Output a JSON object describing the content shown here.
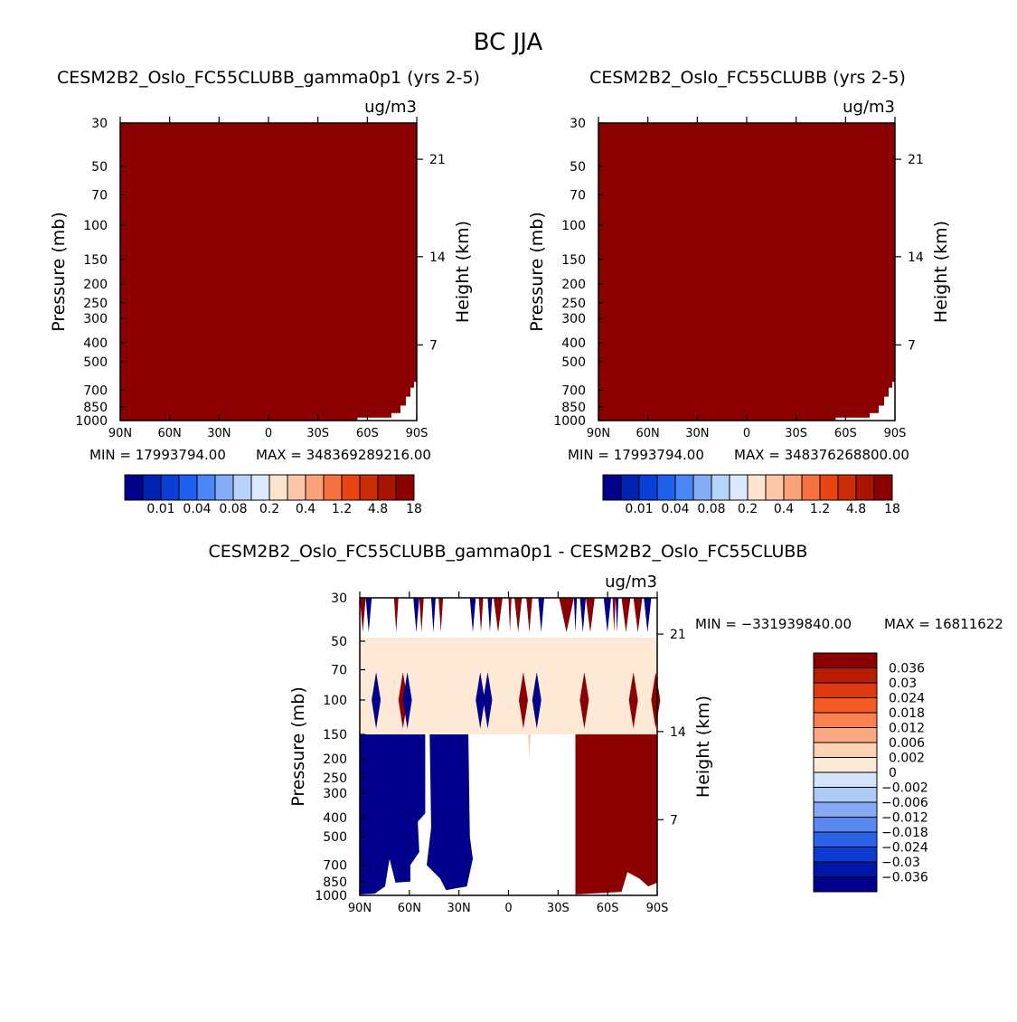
{
  "figure": {
    "title": "BC JJA"
  },
  "chart_data": [
    {
      "type": "heatmap",
      "id": "p1",
      "title": "CESM2B2_Oslo_FC55CLUBB_gamma0p1 (yrs 2-5)",
      "units": "ug/m3",
      "ylabel": "Pressure (mb)",
      "y2label": "Height (km)",
      "x_ticks": [
        "90N",
        "60N",
        "30N",
        "0",
        "30S",
        "60S",
        "90S"
      ],
      "x_values": [
        90,
        60,
        30,
        0,
        -30,
        -60,
        -90
      ],
      "y_ticks": [
        30,
        50,
        70,
        100,
        150,
        200,
        250,
        300,
        400,
        500,
        700,
        850,
        1000
      ],
      "y2_ticks": [
        21,
        14,
        7
      ],
      "ylim": [
        30,
        1000
      ],
      "y_scale": "log",
      "fill": "#8b0000",
      "min_label": "MIN = 17993794.00",
      "max_label": "MAX = 348369289216.00",
      "colorbar_labels": [
        "0.01",
        "0.04",
        "0.08",
        "0.2",
        "0.4",
        "1.2",
        "4.8",
        "18"
      ]
    },
    {
      "type": "heatmap",
      "id": "p2",
      "title": "CESM2B2_Oslo_FC55CLUBB (yrs 2-5)",
      "units": "ug/m3",
      "ylabel": "Pressure (mb)",
      "y2label": "Height (km)",
      "x_ticks": [
        "90N",
        "60N",
        "30N",
        "0",
        "30S",
        "60S",
        "90S"
      ],
      "x_values": [
        90,
        60,
        30,
        0,
        -30,
        -60,
        -90
      ],
      "y_ticks": [
        30,
        50,
        70,
        100,
        150,
        200,
        250,
        300,
        400,
        500,
        700,
        850,
        1000
      ],
      "y2_ticks": [
        21,
        14,
        7
      ],
      "ylim": [
        30,
        1000
      ],
      "y_scale": "log",
      "fill": "#8b0000",
      "min_label": "MIN = 17993794.00",
      "max_label": "MAX = 348376268800.00",
      "colorbar_labels": [
        "0.01",
        "0.04",
        "0.08",
        "0.2",
        "0.4",
        "1.2",
        "4.8",
        "18"
      ]
    },
    {
      "type": "heatmap",
      "id": "diff",
      "title": "CESM2B2_Oslo_FC55CLUBB_gamma0p1 - CESM2B2_Oslo_FC55CLUBB",
      "units": "ug/m3",
      "ylabel": "Pressure (mb)",
      "y2label": "Height (km)",
      "x_ticks": [
        "90N",
        "60N",
        "30N",
        "0",
        "30S",
        "60S",
        "90S"
      ],
      "x_values": [
        90,
        60,
        30,
        0,
        -30,
        -60,
        -90
      ],
      "y_ticks": [
        30,
        50,
        70,
        100,
        150,
        200,
        250,
        300,
        400,
        500,
        700,
        850,
        1000
      ],
      "y2_ticks": [
        21,
        14,
        7
      ],
      "ylim": [
        30,
        1000
      ],
      "y_scale": "log",
      "min_label": "MIN = −331939840.00",
      "max_label": "MAX = 16811622",
      "colorbar_labels": [
        "0.036",
        "0.03",
        "0.024",
        "0.018",
        "0.012",
        "0.006",
        "0.002",
        "0",
        "−0.002",
        "−0.006",
        "−0.012",
        "−0.018",
        "−0.024",
        "−0.03",
        "−0.036"
      ]
    }
  ],
  "colors": {
    "seq_colorbar": [
      "#00008b",
      "#0022b0",
      "#0a3fd6",
      "#2060ee",
      "#4a86f6",
      "#86acf8",
      "#b8d3fa",
      "#dbeafc",
      "#fde4cf",
      "#fcc6a8",
      "#fba27a",
      "#f7703f",
      "#e84512",
      "#c82d08",
      "#a81402",
      "#8b0000"
    ],
    "div_colorbar": [
      "#8b0000",
      "#b81c02",
      "#e0380e",
      "#f55a22",
      "#f98050",
      "#fba882",
      "#fcd2b4",
      "#fde9d6",
      "#d2e5fb",
      "#aecbf7",
      "#86aaf4",
      "#5a88ef",
      "#2c62e6",
      "#0b3bd0",
      "#0016a8",
      "#00008b"
    ],
    "pos_fill": "#8b0000",
    "neg_fill": "#00008b",
    "band_fill": "#fde9d6"
  }
}
